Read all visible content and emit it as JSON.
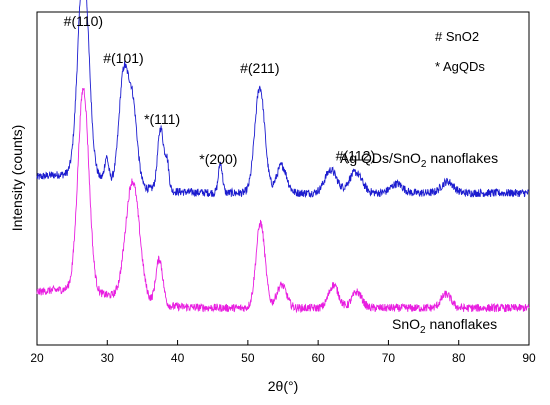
{
  "chart_data": {
    "type": "line",
    "title": "",
    "xlabel": "2θ(°)",
    "ylabel": "Intensity (counts)",
    "xlim": [
      20,
      90
    ],
    "x_ticks": [
      "20",
      "30",
      "40",
      "50",
      "60",
      "70",
      "80",
      "90"
    ],
    "y_ticks_shown": false,
    "grid": false,
    "legend": {
      "placement": "top-right",
      "entries": [
        {
          "marker": "#",
          "text": "# SnO2"
        },
        {
          "marker": "*",
          "text": "* AgQDs"
        }
      ]
    },
    "series": [
      {
        "name": "Ag QDs/SnO2 nanoflakes",
        "label_main": "Ag QDs/SnO",
        "label_sub": "2",
        "label_tail": " nanoflakes",
        "color": "#1c1ccf",
        "baseline": 0.5,
        "peaks": [
          {
            "x": 26.6,
            "height": 0.92,
            "width": 1.1
          },
          {
            "x": 29.9,
            "height": 0.1,
            "width": 0.4
          },
          {
            "x": 32.3,
            "height": 0.46,
            "width": 0.9
          },
          {
            "x": 33.6,
            "height": 0.35,
            "width": 0.9
          },
          {
            "x": 37.6,
            "height": 0.27,
            "width": 0.6
          },
          {
            "x": 38.5,
            "height": 0.12,
            "width": 0.4
          },
          {
            "x": 46.1,
            "height": 0.13,
            "width": 0.4
          },
          {
            "x": 51.7,
            "height": 0.46,
            "width": 1.0
          },
          {
            "x": 54.8,
            "height": 0.12,
            "width": 1.0
          },
          {
            "x": 61.8,
            "height": 0.1,
            "width": 1.2
          },
          {
            "x": 65.3,
            "height": 0.09,
            "width": 1.3
          },
          {
            "x": 71.2,
            "height": 0.04,
            "width": 1.2
          },
          {
            "x": 78.4,
            "height": 0.05,
            "width": 1.2
          }
        ],
        "annotations": [
          {
            "text": "#(110)",
            "x": 26.6
          },
          {
            "text": "#(101)",
            "x": 32.3
          },
          {
            "text": "*(111)",
            "x": 37.8
          },
          {
            "text": "*(200)",
            "x": 45.8
          },
          {
            "text": "#(211)",
            "x": 51.7
          },
          {
            "text": "#(112)",
            "x": 65.3
          }
        ]
      },
      {
        "name": "SnO2 nanoflakes",
        "label_main": "SnO",
        "label_sub": "2",
        "label_tail": " nanoflakes",
        "color": "#e81ee0",
        "baseline": 0.0,
        "peaks": [
          {
            "x": 26.6,
            "height": 0.88,
            "width": 1.1
          },
          {
            "x": 33.6,
            "height": 0.52,
            "width": 1.4
          },
          {
            "x": 37.4,
            "height": 0.2,
            "width": 0.7
          },
          {
            "x": 51.8,
            "height": 0.37,
            "width": 0.9
          },
          {
            "x": 54.8,
            "height": 0.1,
            "width": 1.0
          },
          {
            "x": 62.2,
            "height": 0.1,
            "width": 1.0
          },
          {
            "x": 65.5,
            "height": 0.07,
            "width": 1.0
          },
          {
            "x": 78.2,
            "height": 0.06,
            "width": 1.0
          }
        ]
      }
    ]
  }
}
